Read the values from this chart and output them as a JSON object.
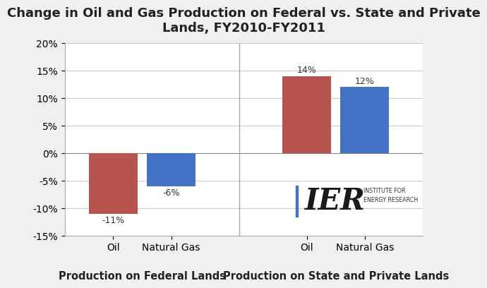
{
  "title": "Change in Oil and Gas Production on Federal vs. State and Private\nLands, FY2010-FY2011",
  "categories": [
    "Oil",
    "Natural Gas",
    "Oil",
    "Natural Gas"
  ],
  "values": [
    -11,
    -6,
    14,
    12
  ],
  "bar_colors": [
    "#b85450",
    "#4472c4",
    "#b85450",
    "#4472c4"
  ],
  "bar_labels": [
    "-11%",
    "-6%",
    "14%",
    "12%"
  ],
  "group_labels": [
    "Production on Federal Lands",
    "Production on State and Private Lands"
  ],
  "ylim": [
    -15,
    20
  ],
  "yticks": [
    -15,
    -10,
    -5,
    0,
    5,
    10,
    15,
    20
  ],
  "ytick_labels": [
    "-15%",
    "-10%",
    "-5%",
    "0%",
    "5%",
    "10%",
    "15%",
    "20%"
  ],
  "background_color": "#f0f0f0",
  "plot_bg_color": "#ffffff",
  "bar_width": 0.5,
  "title_fontsize": 13,
  "tick_fontsize": 10,
  "label_fontsize": 9,
  "group_label_fontsize": 10.5
}
